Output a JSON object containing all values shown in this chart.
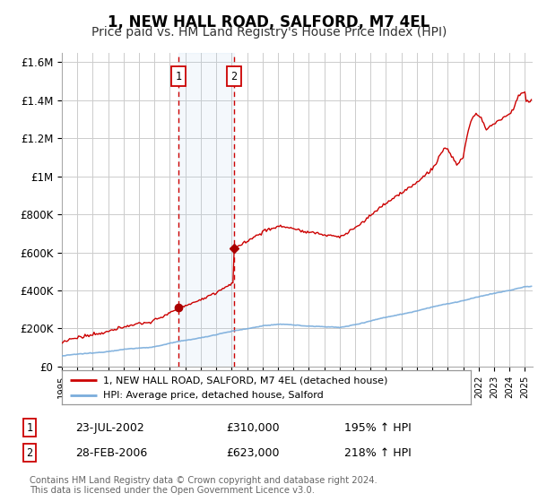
{
  "title": "1, NEW HALL ROAD, SALFORD, M7 4EL",
  "subtitle": "Price paid vs. HM Land Registry's House Price Index (HPI)",
  "title_fontsize": 12,
  "subtitle_fontsize": 10,
  "background_color": "#ffffff",
  "grid_color": "#cccccc",
  "sale1_date_label": "23-JUL-2002",
  "sale1_price": 310000,
  "sale1_hpi_pct": "195% ↑ HPI",
  "sale2_date_label": "28-FEB-2006",
  "sale2_price": 623000,
  "sale2_hpi_pct": "218% ↑ HPI",
  "sale1_x": 2002.56,
  "sale2_x": 2006.16,
  "hpi_line_color": "#7aaddc",
  "price_line_color": "#cc0000",
  "legend_label_price": "1, NEW HALL ROAD, SALFORD, M7 4EL (detached house)",
  "legend_label_hpi": "HPI: Average price, detached house, Salford",
  "footer": "Contains HM Land Registry data © Crown copyright and database right 2024.\nThis data is licensed under the Open Government Licence v3.0.",
  "ylim": [
    0,
    1650000
  ],
  "yticks": [
    0,
    200000,
    400000,
    600000,
    800000,
    1000000,
    1200000,
    1400000,
    1600000
  ],
  "ytick_labels": [
    "£0",
    "£200K",
    "£400K",
    "£600K",
    "£800K",
    "£1M",
    "£1.2M",
    "£1.4M",
    "£1.6M"
  ]
}
